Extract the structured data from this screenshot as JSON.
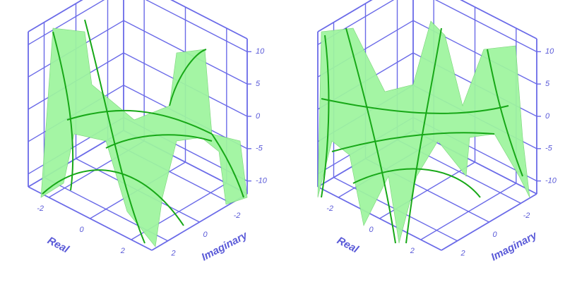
{
  "chart_data": [
    {
      "type": "surface3d",
      "xlabel": "Real",
      "ylabel": "Imaginary",
      "xlim": [
        -3,
        3
      ],
      "ylim": [
        -3,
        3
      ],
      "zlim": [
        -12,
        12
      ],
      "xticks": [
        -2,
        0,
        2
      ],
      "yticks": [
        -2,
        0,
        2
      ],
      "zticks": [
        -10,
        -5,
        0,
        5,
        10
      ],
      "color": "#9ef59e",
      "grid_color": "#6a6ae8",
      "grid": true
    },
    {
      "type": "surface3d",
      "xlabel": "Real",
      "ylabel": "Imaginary",
      "xlim": [
        -3,
        3
      ],
      "ylim": [
        -3,
        3
      ],
      "zlim": [
        -12,
        12
      ],
      "xticks": [
        -2,
        0,
        2
      ],
      "yticks": [
        -2,
        0,
        2
      ],
      "zticks": [
        -10,
        -5,
        0,
        5,
        10
      ],
      "color": "#9ef59e",
      "grid_color": "#6a6ae8",
      "grid": true
    }
  ]
}
